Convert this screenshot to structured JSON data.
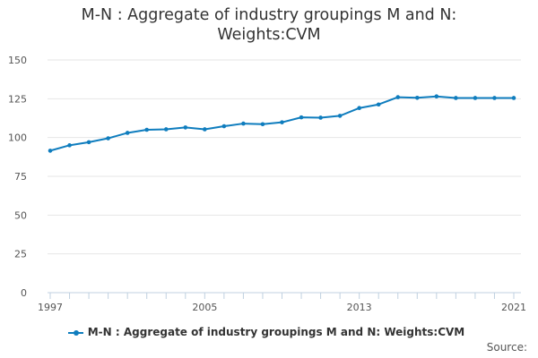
{
  "chart_data": {
    "type": "line",
    "title": "M-N : Aggregate of industry groupings M and N: Weights:CVM",
    "xlabel": "",
    "ylabel": "",
    "x": [
      1997,
      1998,
      1999,
      2000,
      2001,
      2002,
      2003,
      2004,
      2005,
      2006,
      2007,
      2008,
      2009,
      2010,
      2011,
      2012,
      2013,
      2014,
      2015,
      2016,
      2017,
      2018,
      2019,
      2020,
      2021
    ],
    "xlim": [
      1997,
      2021
    ],
    "x_tick_labels": [
      "1997",
      "2005",
      "2013",
      "2021"
    ],
    "ylim": [
      0,
      150
    ],
    "y_ticks": [
      0,
      25,
      50,
      75,
      100,
      125,
      150
    ],
    "y_tick_labels": [
      "0",
      "25",
      "50",
      "75",
      "100",
      "125",
      "150"
    ],
    "grid": true,
    "series": [
      {
        "name": "M-N : Aggregate of industry groupings M and N: Weights:CVM",
        "color": "#0f7dbe",
        "values": [
          91.5,
          95,
          97,
          99.5,
          103,
          105,
          105.3,
          106.5,
          105.3,
          107.3,
          109,
          108.6,
          109.8,
          113,
          112.8,
          114,
          119,
          121.3,
          126,
          125.6,
          126.5,
          125.5,
          125.5,
          125.5,
          125.5
        ]
      }
    ],
    "legend": "bottom-center"
  },
  "footer": {
    "source_label": "Source:"
  }
}
